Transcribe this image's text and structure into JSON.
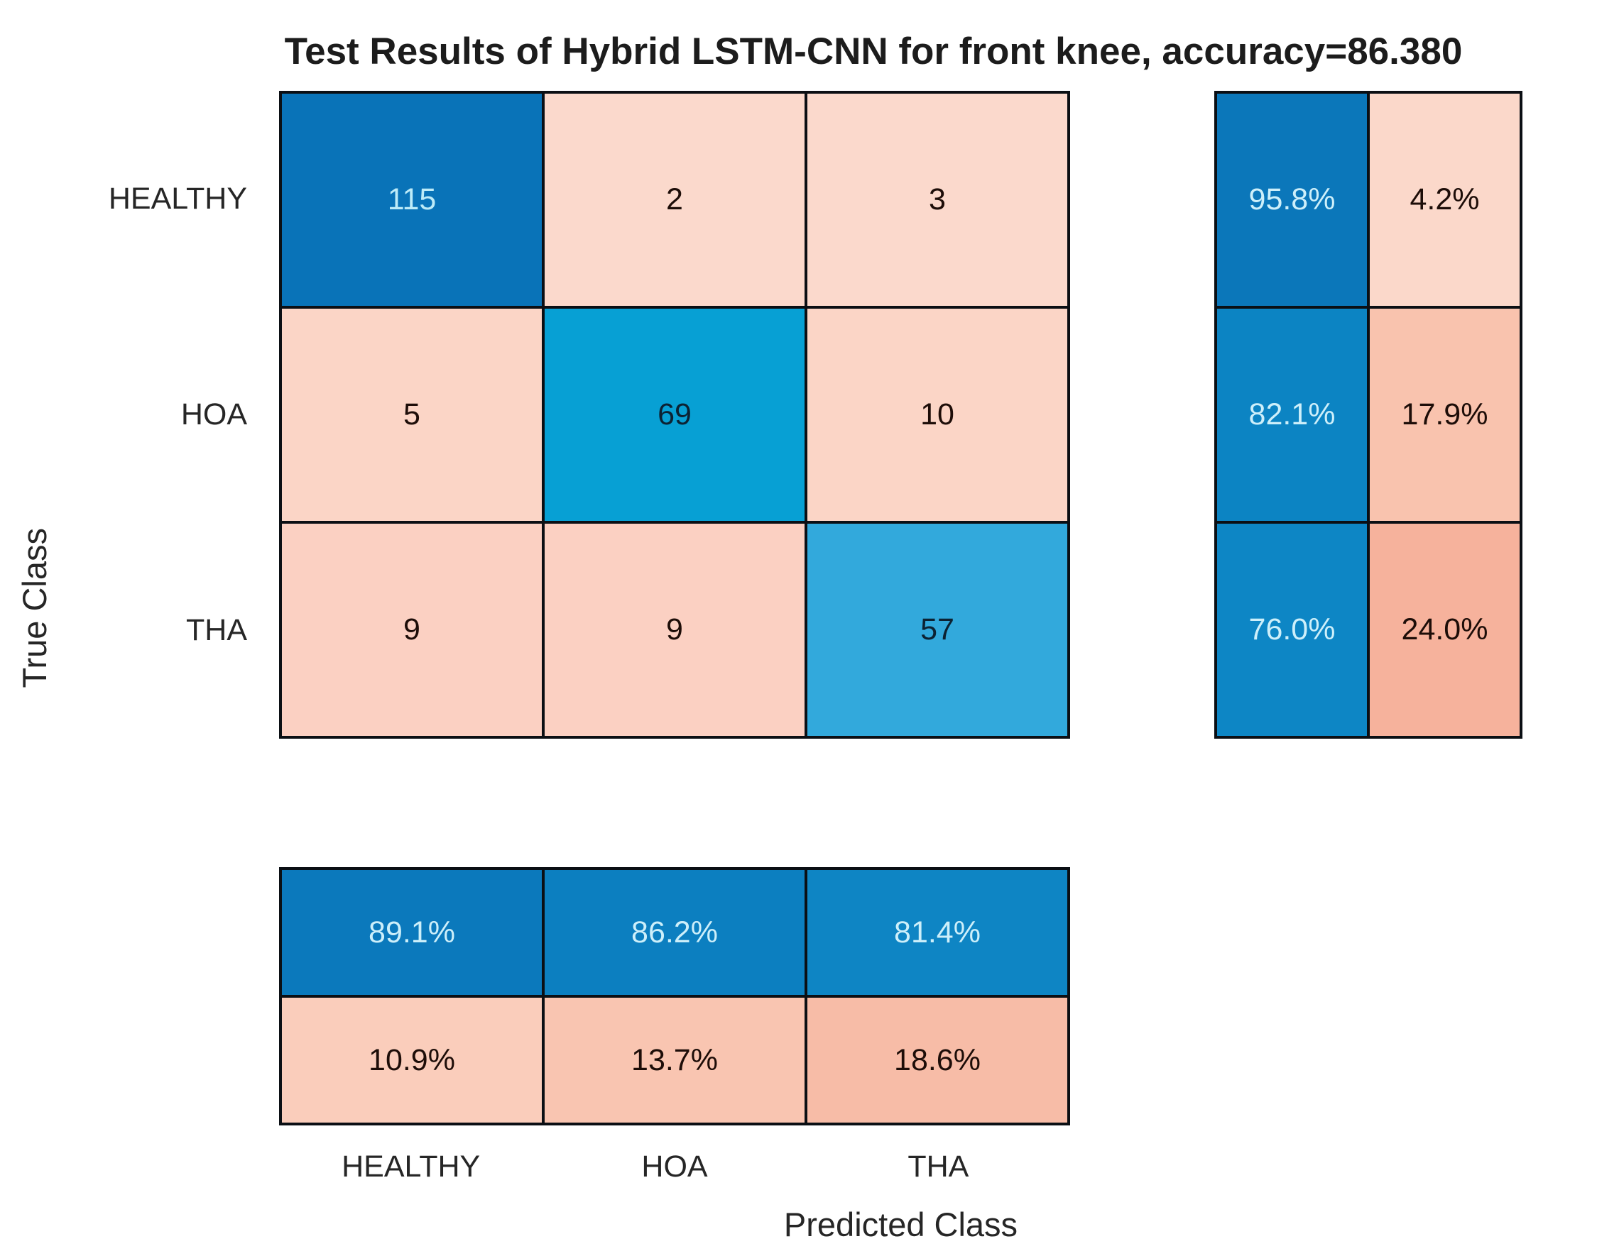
{
  "title": "Test Results of Hybrid LSTM-CNN for front knee, accuracy=86.380",
  "axes": {
    "x_label": "Predicted Class",
    "y_label": "True Class",
    "tick_labels": [
      "HEALTHY",
      "HOA",
      "THA"
    ]
  },
  "chart_data": {
    "type": "heatmap",
    "subtype": "confusion-matrix",
    "title": "Test Results of Hybrid LSTM-CNN for front knee, accuracy=86.380",
    "xlabel": "Predicted Class",
    "ylabel": "True Class",
    "categories": [
      "HEALTHY",
      "HOA",
      "THA"
    ],
    "confusion_counts": [
      [
        115,
        2,
        3
      ],
      [
        5,
        69,
        10
      ],
      [
        9,
        9,
        57
      ]
    ],
    "row_normalized_pct": {
      "true_positive_rate": [
        95.8,
        82.1,
        76.0
      ],
      "false_negative_rate": [
        4.2,
        17.9,
        24.0
      ]
    },
    "column_normalized_pct": {
      "positive_predictive_value": [
        89.1,
        86.2,
        81.4
      ],
      "false_discovery_rate": [
        10.9,
        13.7,
        18.6
      ]
    },
    "accuracy": 86.38,
    "legend": "none",
    "grid": "black cell borders"
  },
  "colors": {
    "grid_line": "#0b0f14",
    "diagonal_dark_blue": "#0973b8",
    "pale_cyan_text": "#cdeffa",
    "dark_text": "#1d0d08"
  },
  "matrix": {
    "rows": [
      {
        "cells": [
          {
            "text": "115",
            "bg": "#0973b8",
            "fg": "#bdebf8"
          },
          {
            "text": "2",
            "bg": "#fbd9cc",
            "fg": "#1d0d08"
          },
          {
            "text": "3",
            "bg": "#fbd9cc",
            "fg": "#1d0d08"
          }
        ]
      },
      {
        "cells": [
          {
            "text": "5",
            "bg": "#fbd5c6",
            "fg": "#1d0d08"
          },
          {
            "text": "69",
            "bg": "#07a0d4",
            "fg": "#0c2233"
          },
          {
            "text": "10",
            "bg": "#fbd5c6",
            "fg": "#1d0d08"
          }
        ]
      },
      {
        "cells": [
          {
            "text": "9",
            "bg": "#fbd0c2",
            "fg": "#1d0d08"
          },
          {
            "text": "9",
            "bg": "#fbd0c2",
            "fg": "#1d0d08"
          },
          {
            "text": "57",
            "bg": "#32a9dc",
            "fg": "#0c2233"
          }
        ]
      }
    ]
  },
  "row_summary": {
    "rows": [
      {
        "cells": [
          {
            "text": "95.8%",
            "bg": "#0b77ba",
            "fg": "#cdeffa"
          },
          {
            "text": "4.2%",
            "bg": "#fbd8ca",
            "fg": "#1d0d08"
          }
        ]
      },
      {
        "cells": [
          {
            "text": "82.1%",
            "bg": "#0c84c3",
            "fg": "#cdeffa"
          },
          {
            "text": "17.9%",
            "bg": "#f9c3ae",
            "fg": "#1d0d08"
          }
        ]
      },
      {
        "cells": [
          {
            "text": "76.0%",
            "bg": "#0d86c5",
            "fg": "#cdeffa"
          },
          {
            "text": "24.0%",
            "bg": "#f6b29c",
            "fg": "#1d0d08"
          }
        ]
      }
    ]
  },
  "col_summary": {
    "rows": [
      {
        "cells": [
          {
            "text": "89.1%",
            "bg": "#0b79bc",
            "fg": "#cdeffa"
          },
          {
            "text": "86.2%",
            "bg": "#0c7fc0",
            "fg": "#cdeffa"
          },
          {
            "text": "81.4%",
            "bg": "#0e85c4",
            "fg": "#cdeffa"
          }
        ]
      },
      {
        "cells": [
          {
            "text": "10.9%",
            "bg": "#facdbb",
            "fg": "#1d0d08"
          },
          {
            "text": "13.7%",
            "bg": "#f9c5b1",
            "fg": "#1d0d08"
          },
          {
            "text": "18.6%",
            "bg": "#f7bca7",
            "fg": "#1d0d08"
          }
        ]
      }
    ]
  }
}
